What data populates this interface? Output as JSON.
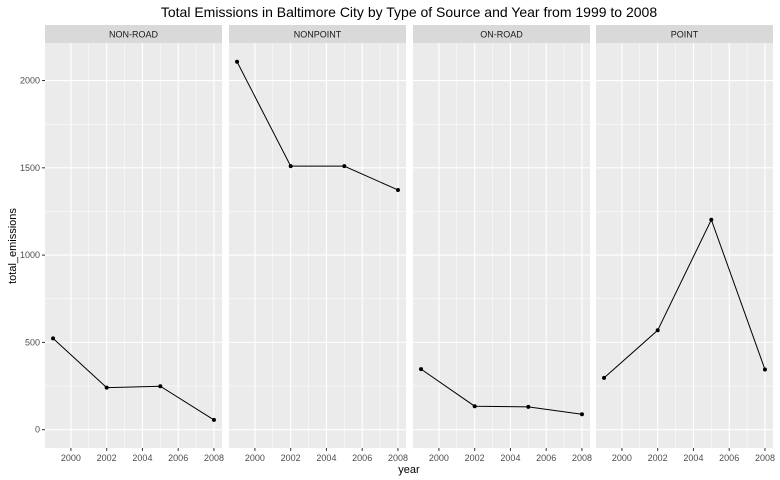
{
  "chart_data": {
    "type": "line",
    "title": "Total Emissions in Baltimore City by Type of Source and Year from 1999 to 2008",
    "xlabel": "year",
    "ylabel": "total_emissions",
    "x": [
      1999,
      2002,
      2005,
      2008
    ],
    "xlim": [
      1998.55,
      2008.45
    ],
    "ylim": [
      -105,
      2215
    ],
    "xticks": [
      2000,
      2002,
      2004,
      2006,
      2008
    ],
    "yticks": [
      0,
      500,
      1000,
      1500,
      2000
    ],
    "grid": true,
    "colors": {
      "panel_bg": "#ebebeb",
      "strip_bg": "#d9d9d9",
      "grid": "#ffffff",
      "line": "#000000"
    },
    "facets": [
      {
        "name": "NON-ROAD",
        "values": [
          522.94,
          240.85,
          248.93,
          55.82
        ]
      },
      {
        "name": "NONPOINT",
        "values": [
          2107.63,
          1509.5,
          1509.5,
          1373.21
        ]
      },
      {
        "name": "ON-ROAD",
        "values": [
          346.82,
          134.31,
          130.43,
          88.28
        ]
      },
      {
        "name": "POINT",
        "values": [
          296.8,
          569.26,
          1202.49,
          344.98
        ]
      }
    ]
  }
}
